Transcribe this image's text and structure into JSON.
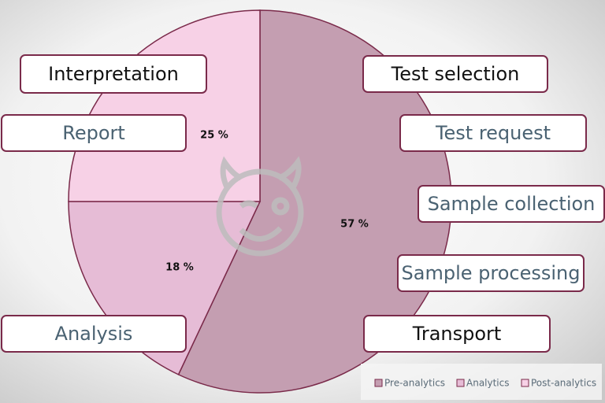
{
  "chart_data": {
    "type": "pie",
    "categories": [
      "Pre-analytics",
      "Analytics",
      "Post-analytics"
    ],
    "values": [
      57,
      18,
      25
    ],
    "value_labels": [
      "57 %",
      "18 %",
      "25 %"
    ],
    "colors": [
      "#c49eb1",
      "#e6bcd6",
      "#f7d1e6"
    ],
    "legend": "bottom-right",
    "annotations": [
      {
        "text": "Interpretation",
        "color": "#111111"
      },
      {
        "text": "Report",
        "color": "#4a6272"
      },
      {
        "text": "Analysis",
        "color": "#4a6272"
      },
      {
        "text": "Test selection",
        "color": "#111111"
      },
      {
        "text": "Test request",
        "color": "#4a6272"
      },
      {
        "text": "Sample collection",
        "color": "#4a6272"
      },
      {
        "text": "Sample processing",
        "color": "#4a6272"
      },
      {
        "text": "Transport",
        "color": "#111111"
      }
    ]
  }
}
